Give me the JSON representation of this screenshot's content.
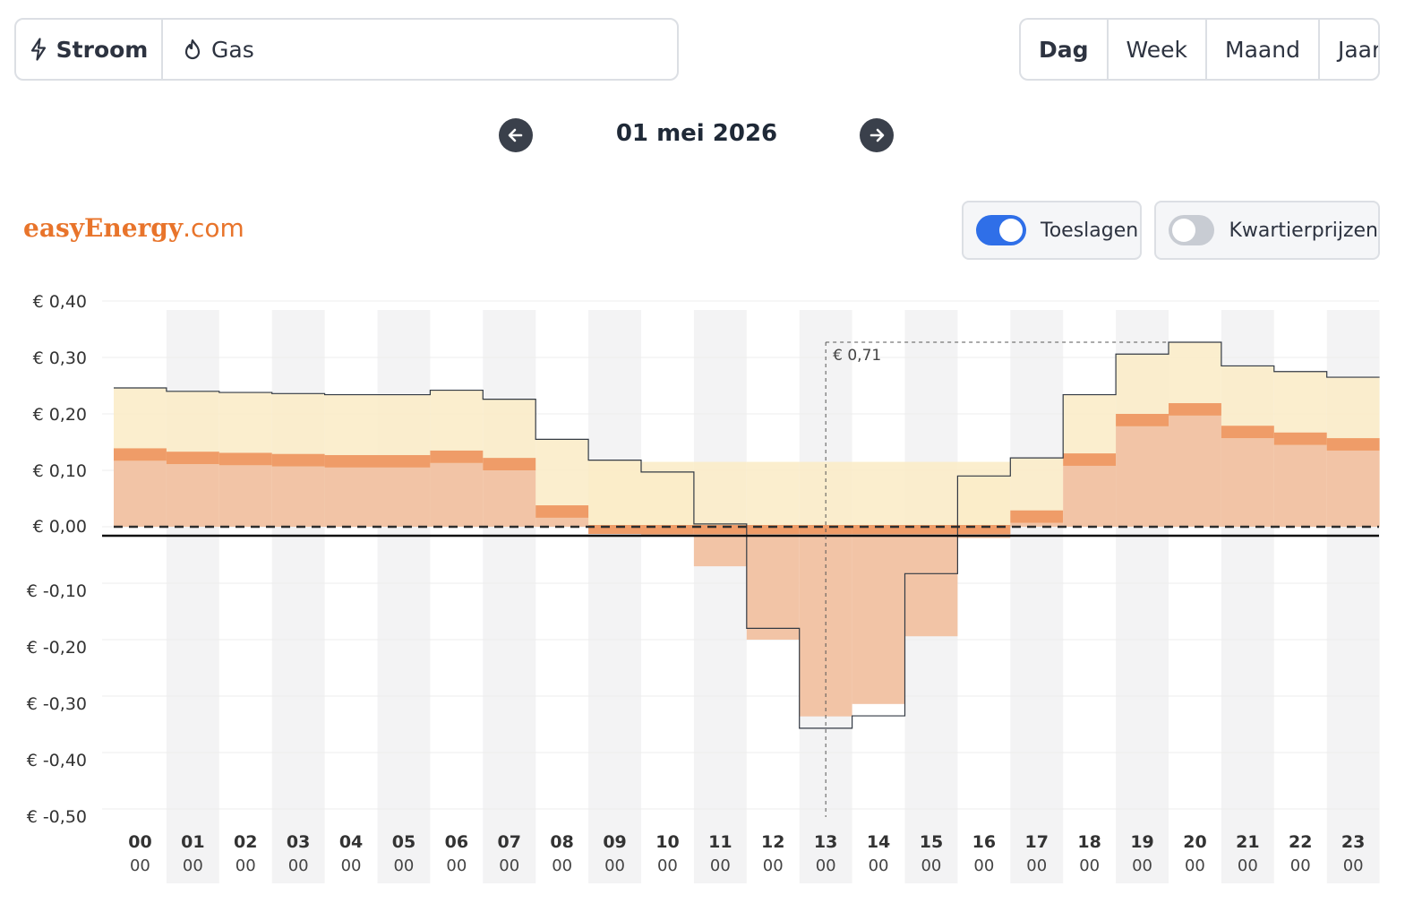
{
  "energy_tabs": {
    "stroom": "Stroom",
    "gas": "Gas"
  },
  "period_tabs": [
    "Dag",
    "Week",
    "Maand",
    "Jaar"
  ],
  "date": "01 mei 2026",
  "logo": {
    "brand": "easyEnergy",
    "tld": ".com"
  },
  "toggles": {
    "toeslagen": {
      "label": "Toeslagen",
      "on": true
    },
    "kwartier": {
      "label": "Kwartierprijzen",
      "on": false
    }
  },
  "colors": {
    "accent": "#2f6fe8",
    "brand": "#e8742b",
    "light_fill": "#fbecc9",
    "mid_fill": "#f2c4a6",
    "dark_band": "#ef9c68"
  },
  "chart_data": {
    "type": "bar",
    "categories": [
      "00",
      "01",
      "02",
      "03",
      "04",
      "05",
      "06",
      "07",
      "08",
      "09",
      "10",
      "11",
      "12",
      "13",
      "14",
      "15",
      "16",
      "17",
      "18",
      "19",
      "20",
      "21",
      "22",
      "23"
    ],
    "sub_labels": [
      "00",
      "00",
      "00",
      "00",
      "00",
      "00",
      "00",
      "00",
      "00",
      "00",
      "00",
      "00",
      "00",
      "00",
      "00",
      "00",
      "00",
      "00",
      "00",
      "00",
      "00",
      "00",
      "00",
      "00"
    ],
    "yticks": [
      "€ 0,40",
      "€ 0,30",
      "€ 0,20",
      "€ 0,10",
      "€ 0,00",
      "€ -0,10",
      "€ -0,20",
      "€ -0,30",
      "€ -0,40",
      "€ -0,50"
    ],
    "ylim": [
      -0.5,
      0.4
    ],
    "series": [
      {
        "values": [
          0.117,
          0.111,
          0.109,
          0.107,
          0.105,
          0.105,
          0.113,
          0.1,
          0.016,
          -0.002,
          -0.015,
          -0.07,
          -0.2,
          -0.336,
          -0.314,
          -0.194,
          -0.02,
          0.007,
          0.108,
          0.178,
          0.197,
          0.157,
          0.145,
          0.135
        ]
      },
      {
        "values": [
          0.022,
          0.022,
          0.022,
          0.022,
          0.022,
          0.022,
          0.022,
          0.022,
          0.022,
          0.022,
          0.022,
          0.022,
          0.022,
          0.022,
          0.022,
          0.022,
          0.022,
          0.022,
          0.022,
          0.022,
          0.022,
          0.022,
          0.022,
          0.022
        ]
      },
      {
        "values": [
          0.246,
          0.24,
          0.238,
          0.236,
          0.234,
          0.234,
          0.242,
          0.226,
          0.155,
          0.118,
          0.097,
          0.005,
          -0.18,
          -0.357,
          -0.335,
          -0.083,
          0.09,
          0.122,
          0.234,
          0.306,
          0.327,
          0.285,
          0.275,
          0.265
        ]
      },
      {
        "values": [
          null,
          null,
          null,
          null,
          null,
          null,
          null,
          null,
          null,
          0.115,
          0.115,
          0.115,
          0.115,
          0.115,
          0.115,
          0.115,
          0.115,
          null,
          null,
          null,
          null,
          null,
          null,
          null
        ]
      }
    ],
    "tooltip": {
      "hour": "13",
      "value": "€ 0,71",
      "level": 0.327
    }
  }
}
